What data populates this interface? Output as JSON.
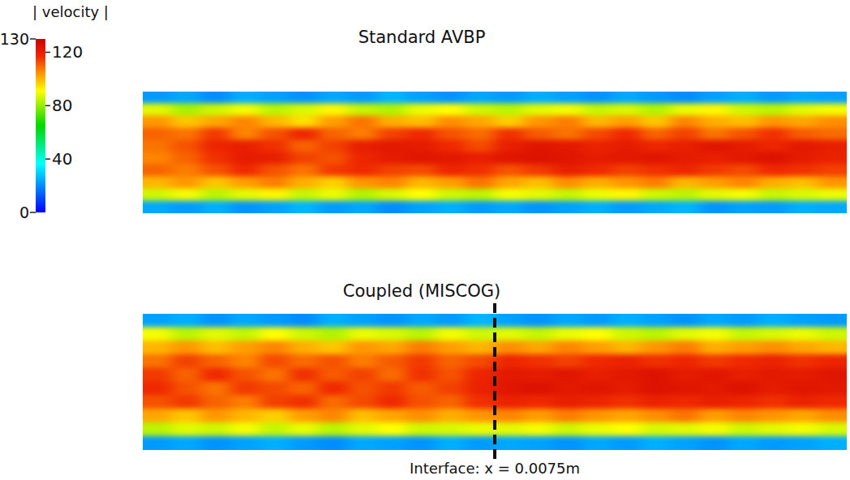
{
  "chart_data": [
    {
      "type": "heatmap",
      "title": "Standard AVBP",
      "xlim": [
        0,
        0.015
      ],
      "tick_labels": false,
      "colorbar": {
        "title": "| velocity |",
        "range": [
          0,
          130
        ],
        "ticks": [
          0,
          40,
          80,
          120,
          130
        ]
      },
      "cells": [
        [
          22,
          24,
          20,
          25,
          23,
          21,
          24,
          22,
          26,
          23,
          21,
          24,
          22,
          25,
          23,
          21,
          24,
          22,
          20,
          23,
          25,
          22,
          24,
          23
        ],
        [
          88,
          82,
          86,
          90,
          84,
          87,
          92,
          85,
          83,
          89,
          91,
          86,
          84,
          88,
          90,
          85,
          87,
          83,
          89,
          92,
          86,
          84,
          88,
          90
        ],
        [
          104,
          98,
          102,
          106,
          100,
          95,
          103,
          108,
          101,
          99,
          105,
          102,
          97,
          104,
          107,
          100,
          103,
          98,
          106,
          101,
          99,
          104,
          102,
          105
        ],
        [
          110,
          108,
          115,
          106,
          112,
          118,
          110,
          107,
          114,
          117,
          112,
          109,
          116,
          111,
          108,
          113,
          117,
          110,
          114,
          108,
          112,
          116,
          111,
          109
        ],
        [
          108,
          112,
          118,
          120,
          116,
          110,
          114,
          120,
          122,
          121,
          117,
          113,
          120,
          123,
          122,
          119,
          121,
          118,
          120,
          123,
          121,
          118,
          122,
          120
        ],
        [
          106,
          110,
          116,
          121,
          120,
          114,
          112,
          118,
          121,
          123,
          122,
          120,
          123,
          124,
          123,
          121,
          122,
          123,
          121,
          120,
          122,
          124,
          121,
          119
        ],
        [
          110,
          107,
          112,
          117,
          112,
          108,
          115,
          117,
          114,
          113,
          118,
          116,
          112,
          115,
          120,
          117,
          114,
          116,
          118,
          115,
          113,
          117,
          116,
          114
        ],
        [
          100,
          104,
          98,
          103,
          107,
          101,
          97,
          104,
          106,
          100,
          103,
          108,
          102,
          99,
          105,
          101,
          104,
          107,
          100,
          103,
          106,
          101,
          99,
          104
        ],
        [
          86,
          90,
          84,
          88,
          92,
          85,
          89,
          83,
          87,
          91,
          86,
          84,
          90,
          88,
          85,
          89,
          92,
          86,
          84,
          88,
          90,
          85,
          87,
          89
        ],
        [
          24,
          22,
          25,
          21,
          23,
          26,
          22,
          24,
          20,
          23,
          25,
          22,
          24,
          21,
          23,
          25,
          22,
          24,
          26,
          21,
          23,
          22,
          25,
          24
        ]
      ]
    },
    {
      "type": "heatmap",
      "title": "Coupled (MISCOG)",
      "xlim": [
        0,
        0.015
      ],
      "tick_labels": false,
      "annotation": {
        "text": "Interface: x = 0.0075m",
        "x": 0.0075
      },
      "cells": [
        [
          23,
          25,
          21,
          24,
          22,
          20,
          25,
          23,
          21,
          24,
          22,
          26,
          23,
          21,
          24,
          22,
          25,
          23,
          21,
          24,
          22,
          25,
          23,
          22
        ],
        [
          90,
          84,
          88,
          85,
          91,
          86,
          83,
          89,
          87,
          84,
          90,
          86,
          88,
          85,
          89,
          91,
          86,
          84,
          88,
          90,
          85,
          87,
          89,
          86
        ],
        [
          100,
          104,
          99,
          103,
          106,
          101,
          98,
          104,
          102,
          107,
          103,
          100,
          105,
          102,
          106,
          103,
          100,
          104,
          107,
          101,
          103,
          105,
          102,
          100
        ],
        [
          108,
          114,
          110,
          106,
          113,
          109,
          112,
          107,
          111,
          115,
          110,
          113,
          118,
          116,
          114,
          117,
          119,
          116,
          118,
          115,
          117,
          119,
          116,
          118
        ],
        [
          115,
          110,
          117,
          112,
          108,
          116,
          111,
          114,
          109,
          116,
          112,
          118,
          122,
          121,
          123,
          120,
          122,
          124,
          121,
          123,
          120,
          122,
          121,
          123
        ],
        [
          117,
          112,
          108,
          115,
          113,
          110,
          117,
          112,
          115,
          111,
          114,
          119,
          123,
          124,
          122,
          123,
          121,
          124,
          123,
          122,
          124,
          121,
          123,
          122
        ],
        [
          112,
          115,
          110,
          107,
          114,
          116,
          109,
          113,
          117,
          112,
          110,
          116,
          119,
          117,
          120,
          118,
          116,
          119,
          117,
          120,
          118,
          116,
          119,
          117
        ],
        [
          102,
          98,
          104,
          100,
          97,
          103,
          106,
          99,
          102,
          105,
          101,
          104,
          106,
          103,
          107,
          104,
          102,
          105,
          108,
          103,
          106,
          104,
          102,
          105
        ],
        [
          84,
          88,
          86,
          90,
          85,
          89,
          84,
          88,
          91,
          86,
          87,
          89,
          88,
          90,
          86,
          89,
          91,
          87,
          88,
          90,
          86,
          88,
          90,
          87
        ],
        [
          22,
          24,
          21,
          23,
          25,
          22,
          20,
          24,
          23,
          21,
          25,
          22,
          24,
          23,
          21,
          24,
          22,
          25,
          23,
          21,
          24,
          22,
          23,
          25
        ]
      ]
    }
  ]
}
